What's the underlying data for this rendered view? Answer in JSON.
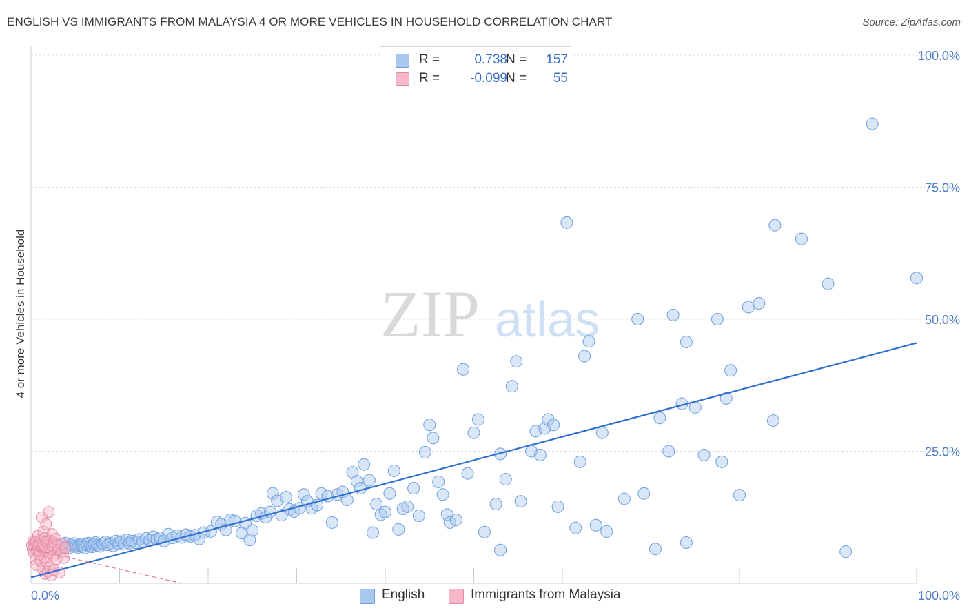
{
  "title": "ENGLISH VS IMMIGRANTS FROM MALAYSIA 4 OR MORE VEHICLES IN HOUSEHOLD CORRELATION CHART",
  "source": "Source: ZipAtlas.com",
  "watermark": {
    "zip": "ZIP",
    "atlas": "atlas"
  },
  "legend": {
    "rows": [
      {
        "r_label": "R =",
        "r_value": "0.738",
        "n_label": "N =",
        "n_value": "157",
        "color": "#a8c8f0",
        "border": "#6f9fdc"
      },
      {
        "r_label": "R =",
        "r_value": "-0.099",
        "n_label": "N =",
        "n_value": "55",
        "color": "#f6b8c8",
        "border": "#e889a4"
      }
    ]
  },
  "bottom_legend": [
    {
      "label": "English",
      "color": "#a8c8f0",
      "border": "#6f9fdc"
    },
    {
      "label": "Immigrants from Malaysia",
      "color": "#f6b8c8",
      "border": "#e889a4"
    }
  ],
  "chart_data": {
    "type": "scatter",
    "ylabel": "4 or more Vehicles in Household",
    "x_tick_labels": [
      "0.0%",
      "100.0%"
    ],
    "y_tick_labels": [
      "25.0%",
      "50.0%",
      "75.0%",
      "100.0%"
    ],
    "xlim": [
      0,
      100
    ],
    "ylim": [
      0,
      100
    ],
    "grid": true,
    "legend_position": "top-center",
    "colors": {
      "english": "#6f9fdc",
      "malaysia": "#e889a4",
      "english_line": "#2f6fd0",
      "malaysia_line": "#e07898"
    },
    "series": [
      {
        "name": "English",
        "trend": {
          "x": [
            0,
            100
          ],
          "y": [
            1.1,
            45.5
          ]
        },
        "points": [
          [
            0.4,
            6.8
          ],
          [
            0.7,
            7.2
          ],
          [
            0.9,
            6.4
          ],
          [
            1.1,
            7.5
          ],
          [
            1.3,
            7.0
          ],
          [
            1.5,
            8.3
          ],
          [
            1.7,
            6.6
          ],
          [
            1.9,
            7.8
          ],
          [
            2.1,
            6.9
          ],
          [
            2.3,
            7.1
          ],
          [
            2.5,
            7.4
          ],
          [
            2.7,
            6.5
          ],
          [
            2.9,
            7.0
          ],
          [
            3.1,
            7.2
          ],
          [
            3.3,
            6.8
          ],
          [
            3.5,
            7.3
          ],
          [
            3.7,
            6.9
          ],
          [
            3.9,
            7.6
          ],
          [
            4.1,
            7.0
          ],
          [
            4.3,
            6.7
          ],
          [
            4.5,
            7.3
          ],
          [
            4.7,
            7.0
          ],
          [
            4.9,
            7.5
          ],
          [
            5.1,
            7.1
          ],
          [
            5.3,
            6.8
          ],
          [
            5.5,
            7.2
          ],
          [
            5.7,
            7.4
          ],
          [
            5.9,
            7.0
          ],
          [
            6.1,
            6.7
          ],
          [
            6.3,
            7.3
          ],
          [
            6.5,
            7.6
          ],
          [
            6.7,
            7.1
          ],
          [
            6.9,
            6.9
          ],
          [
            7.1,
            7.4
          ],
          [
            7.3,
            7.7
          ],
          [
            7.5,
            7.2
          ],
          [
            7.8,
            7.0
          ],
          [
            8.1,
            7.5
          ],
          [
            8.4,
            7.8
          ],
          [
            8.7,
            7.3
          ],
          [
            9.0,
            7.6
          ],
          [
            9.3,
            7.1
          ],
          [
            9.6,
            8.0
          ],
          [
            9.9,
            7.5
          ],
          [
            10.2,
            7.9
          ],
          [
            10.5,
            7.4
          ],
          [
            10.8,
            8.2
          ],
          [
            11.1,
            7.6
          ],
          [
            11.4,
            8.0
          ],
          [
            11.8,
            7.7
          ],
          [
            12.2,
            8.3
          ],
          [
            12.6,
            7.9
          ],
          [
            13.0,
            8.5
          ],
          [
            13.4,
            8.1
          ],
          [
            13.8,
            8.8
          ],
          [
            14.2,
            8.3
          ],
          [
            14.6,
            8.6
          ],
          [
            15.0,
            8.0
          ],
          [
            15.5,
            9.3
          ],
          [
            16.0,
            8.6
          ],
          [
            16.5,
            9.0
          ],
          [
            17.0,
            8.7
          ],
          [
            17.5,
            9.2
          ],
          [
            18.0,
            8.9
          ],
          [
            18.5,
            9.1
          ],
          [
            19.0,
            8.4
          ],
          [
            19.5,
            9.6
          ],
          [
            20.3,
            9.8
          ],
          [
            21.0,
            11.6
          ],
          [
            21.5,
            11.2
          ],
          [
            22.0,
            10.1
          ],
          [
            22.5,
            12.0
          ],
          [
            23.0,
            11.8
          ],
          [
            23.8,
            9.5
          ],
          [
            24.2,
            11.4
          ],
          [
            24.7,
            8.2
          ],
          [
            25.0,
            10.0
          ],
          [
            25.5,
            12.8
          ],
          [
            26.0,
            13.2
          ],
          [
            26.5,
            12.5
          ],
          [
            27.0,
            13.5
          ],
          [
            27.3,
            17.0
          ],
          [
            27.8,
            15.6
          ],
          [
            28.3,
            12.9
          ],
          [
            28.8,
            16.3
          ],
          [
            29.2,
            14.0
          ],
          [
            29.7,
            13.6
          ],
          [
            30.3,
            14.2
          ],
          [
            30.8,
            16.8
          ],
          [
            31.2,
            15.5
          ],
          [
            31.7,
            14.2
          ],
          [
            32.3,
            14.8
          ],
          [
            32.8,
            17.0
          ],
          [
            33.5,
            16.5
          ],
          [
            34.0,
            11.5
          ],
          [
            34.6,
            16.8
          ],
          [
            35.2,
            17.3
          ],
          [
            35.7,
            15.8
          ],
          [
            36.3,
            21.0
          ],
          [
            36.8,
            19.3
          ],
          [
            37.2,
            18.0
          ],
          [
            37.6,
            22.5
          ],
          [
            38.2,
            19.5
          ],
          [
            38.6,
            9.6
          ],
          [
            39.0,
            15.0
          ],
          [
            39.5,
            13.0
          ],
          [
            40.0,
            13.5
          ],
          [
            40.5,
            17.0
          ],
          [
            41.0,
            21.3
          ],
          [
            41.5,
            10.2
          ],
          [
            42.0,
            14.1
          ],
          [
            42.5,
            14.5
          ],
          [
            43.2,
            18.0
          ],
          [
            43.8,
            12.8
          ],
          [
            44.5,
            24.8
          ],
          [
            45.0,
            30.0
          ],
          [
            45.4,
            27.5
          ],
          [
            46.0,
            19.2
          ],
          [
            46.5,
            16.8
          ],
          [
            47.0,
            13.0
          ],
          [
            47.3,
            11.5
          ],
          [
            48.0,
            12.0
          ],
          [
            48.8,
            40.5
          ],
          [
            49.3,
            20.8
          ],
          [
            50.0,
            28.5
          ],
          [
            50.5,
            31.0
          ],
          [
            51.2,
            9.7
          ],
          [
            52.5,
            15.0
          ],
          [
            53.0,
            24.5
          ],
          [
            53.6,
            19.7
          ],
          [
            54.3,
            37.3
          ],
          [
            54.8,
            42.0
          ],
          [
            55.3,
            15.5
          ],
          [
            56.5,
            25.0
          ],
          [
            57.0,
            28.8
          ],
          [
            57.5,
            24.3
          ],
          [
            58.0,
            29.3
          ],
          [
            58.4,
            31.0
          ],
          [
            59.0,
            30.0
          ],
          [
            59.5,
            14.5
          ],
          [
            60.5,
            68.3
          ],
          [
            61.5,
            10.5
          ],
          [
            62.0,
            23.0
          ],
          [
            62.5,
            43.0
          ],
          [
            63.0,
            45.8
          ],
          [
            63.8,
            11.0
          ],
          [
            64.5,
            28.5
          ],
          [
            65.0,
            9.8
          ],
          [
            67.0,
            16.0
          ],
          [
            68.5,
            50.0
          ],
          [
            69.2,
            17.0
          ],
          [
            71.0,
            31.3
          ],
          [
            72.0,
            25.0
          ],
          [
            72.5,
            50.8
          ],
          [
            73.5,
            34.0
          ],
          [
            74.0,
            45.7
          ],
          [
            75.0,
            33.3
          ],
          [
            76.0,
            24.3
          ],
          [
            77.5,
            50.0
          ],
          [
            78.0,
            23.0
          ],
          [
            78.5,
            35.0
          ],
          [
            79.0,
            40.3
          ],
          [
            80.0,
            16.7
          ],
          [
            81.0,
            52.3
          ],
          [
            82.2,
            53.0
          ],
          [
            83.8,
            30.8
          ],
          [
            84.0,
            67.8
          ],
          [
            87.0,
            65.2
          ],
          [
            90.0,
            56.7
          ],
          [
            92.0,
            6.0
          ],
          [
            95.0,
            87.0
          ],
          [
            100.0,
            57.8
          ],
          [
            70.5,
            6.5
          ],
          [
            74.0,
            7.7
          ],
          [
            53.0,
            6.3
          ]
        ]
      },
      {
        "name": "Immigrants from Malaysia",
        "trend": {
          "x": [
            0,
            17
          ],
          "y": [
            6.5,
            0.0
          ]
        },
        "points": [
          [
            0.1,
            7.2
          ],
          [
            0.2,
            6.5
          ],
          [
            0.3,
            8.0
          ],
          [
            0.3,
            5.8
          ],
          [
            0.4,
            7.6
          ],
          [
            0.5,
            6.9
          ],
          [
            0.5,
            4.5
          ],
          [
            0.6,
            7.9
          ],
          [
            0.6,
            3.5
          ],
          [
            0.7,
            6.2
          ],
          [
            0.8,
            7.0
          ],
          [
            0.8,
            9.0
          ],
          [
            0.9,
            5.5
          ],
          [
            1.0,
            7.4
          ],
          [
            1.0,
            6.0
          ],
          [
            1.1,
            8.3
          ],
          [
            1.1,
            4.2
          ],
          [
            1.2,
            6.8
          ],
          [
            1.2,
            12.5
          ],
          [
            1.3,
            7.5
          ],
          [
            1.3,
            2.8
          ],
          [
            1.4,
            6.3
          ],
          [
            1.4,
            9.8
          ],
          [
            1.5,
            7.1
          ],
          [
            1.5,
            5.0
          ],
          [
            1.6,
            8.6
          ],
          [
            1.6,
            1.8
          ],
          [
            1.7,
            6.6
          ],
          [
            1.7,
            11.2
          ],
          [
            1.8,
            7.8
          ],
          [
            1.8,
            4.0
          ],
          [
            1.9,
            6.1
          ],
          [
            1.9,
            2.2
          ],
          [
            2.0,
            7.3
          ],
          [
            2.0,
            13.5
          ],
          [
            2.1,
            5.7
          ],
          [
            2.1,
            3.0
          ],
          [
            2.2,
            8.1
          ],
          [
            2.2,
            6.4
          ],
          [
            2.3,
            1.5
          ],
          [
            2.4,
            7.0
          ],
          [
            2.4,
            9.3
          ],
          [
            2.5,
            5.2
          ],
          [
            2.6,
            7.7
          ],
          [
            2.6,
            2.5
          ],
          [
            2.7,
            6.9
          ],
          [
            2.8,
            8.4
          ],
          [
            2.9,
            4.6
          ],
          [
            3.0,
            7.2
          ],
          [
            3.1,
            6.3
          ],
          [
            3.2,
            2.0
          ],
          [
            3.4,
            5.9
          ],
          [
            3.5,
            7.5
          ],
          [
            3.7,
            4.8
          ],
          [
            3.9,
            6.7
          ]
        ]
      }
    ]
  }
}
